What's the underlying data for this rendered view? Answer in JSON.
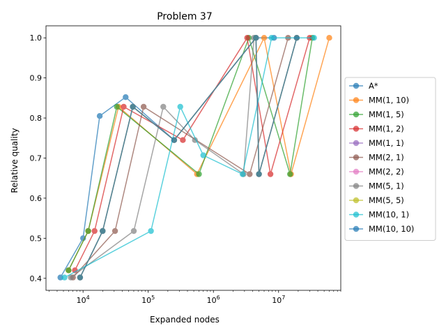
{
  "chart_data": {
    "type": "line",
    "title": "Problem 37",
    "xlabel": "Expanded nodes",
    "ylabel": "Relative quality",
    "x_scale": "log",
    "xlim": [
      2700,
      90000000
    ],
    "ylim": [
      0.37,
      1.03
    ],
    "x_ticks": [
      {
        "value": 10000,
        "base": "10",
        "exp": "4"
      },
      {
        "value": 100000,
        "base": "10",
        "exp": "5"
      },
      {
        "value": 1000000,
        "base": "10",
        "exp": "6"
      },
      {
        "value": 10000000,
        "base": "10",
        "exp": "7"
      }
    ],
    "y_ticks": [
      0.4,
      0.5,
      0.6,
      0.7,
      0.8,
      0.9,
      1.0
    ],
    "y_tick_labels": [
      "0.4",
      "0.5",
      "0.6",
      "0.7",
      "0.8",
      "0.9",
      "1.0"
    ],
    "grid": false,
    "legend_position": "outside-right",
    "series": [
      {
        "name": "A*",
        "color": "#1f77b4",
        "x": [
          4500,
          10000,
          18000,
          45000,
          250000,
          4500000,
          8500000
        ],
        "y": [
          0.402,
          0.5,
          0.805,
          0.852,
          0.745,
          1.0,
          1.0
        ]
      },
      {
        "name": "MM(1, 10)",
        "color": "#ff7f0e",
        "x": [
          6000,
          12000,
          35000,
          560000,
          6000000,
          15500000,
          60000000
        ],
        "y": [
          0.42,
          0.518,
          0.828,
          0.66,
          1.0,
          0.66,
          1.0
        ]
      },
      {
        "name": "MM(1, 5)",
        "color": "#2ca02c",
        "x": [
          6000,
          12000,
          33000,
          600000,
          3500000,
          15000000,
          33000000
        ],
        "y": [
          0.42,
          0.518,
          0.828,
          0.66,
          1.0,
          0.66,
          1.0
        ]
      },
      {
        "name": "MM(1, 2)",
        "color": "#d62728",
        "x": [
          7500,
          15000,
          42000,
          340000,
          3300000,
          7500000,
          30000000
        ],
        "y": [
          0.42,
          0.518,
          0.828,
          0.745,
          1.0,
          0.66,
          1.0
        ]
      },
      {
        "name": "MM(1, 1)",
        "color": "#9467bd",
        "x": [
          9000,
          20000,
          58000,
          250000,
          4500000,
          5000000,
          19000000
        ],
        "y": [
          0.402,
          0.518,
          0.828,
          0.745,
          1.0,
          0.66,
          1.0
        ]
      },
      {
        "name": "MM(2, 1)",
        "color": "#8c564b",
        "x": [
          7000,
          31000,
          85000,
          3600000,
          14000000
        ],
        "y": [
          0.402,
          0.518,
          0.828,
          0.66,
          1.0
        ]
      },
      {
        "name": "MM(2, 2)",
        "color": "#e377c2",
        "x": [
          9000,
          20000,
          58000,
          250000,
          4500000,
          5000000,
          19000000
        ],
        "y": [
          0.402,
          0.518,
          0.828,
          0.745,
          1.0,
          0.66,
          1.0
        ]
      },
      {
        "name": "MM(5, 1)",
        "color": "#7f7f7f",
        "x": [
          6500,
          60000,
          170000,
          520000,
          2900000,
          4200000
        ],
        "y": [
          0.402,
          0.518,
          0.828,
          0.745,
          0.66,
          1.0
        ]
      },
      {
        "name": "MM(5, 5)",
        "color": "#bcbd22",
        "x": [
          9000,
          20000,
          58000,
          250000,
          4500000,
          5000000,
          19000000
        ],
        "y": [
          0.402,
          0.518,
          0.828,
          0.745,
          1.0,
          0.66,
          1.0
        ]
      },
      {
        "name": "MM(10, 1)",
        "color": "#17becf",
        "x": [
          5200,
          110000,
          310000,
          700000,
          2800000,
          7800000,
          35000000
        ],
        "y": [
          0.402,
          0.518,
          0.828,
          0.707,
          0.66,
          1.0,
          1.0
        ]
      },
      {
        "name": "MM(10, 10)",
        "color": "#1f77b4",
        "x": [
          9000,
          20000,
          58000,
          250000,
          4500000,
          5000000,
          19000000
        ],
        "y": [
          0.402,
          0.518,
          0.828,
          0.745,
          1.0,
          0.66,
          1.0
        ]
      }
    ]
  }
}
